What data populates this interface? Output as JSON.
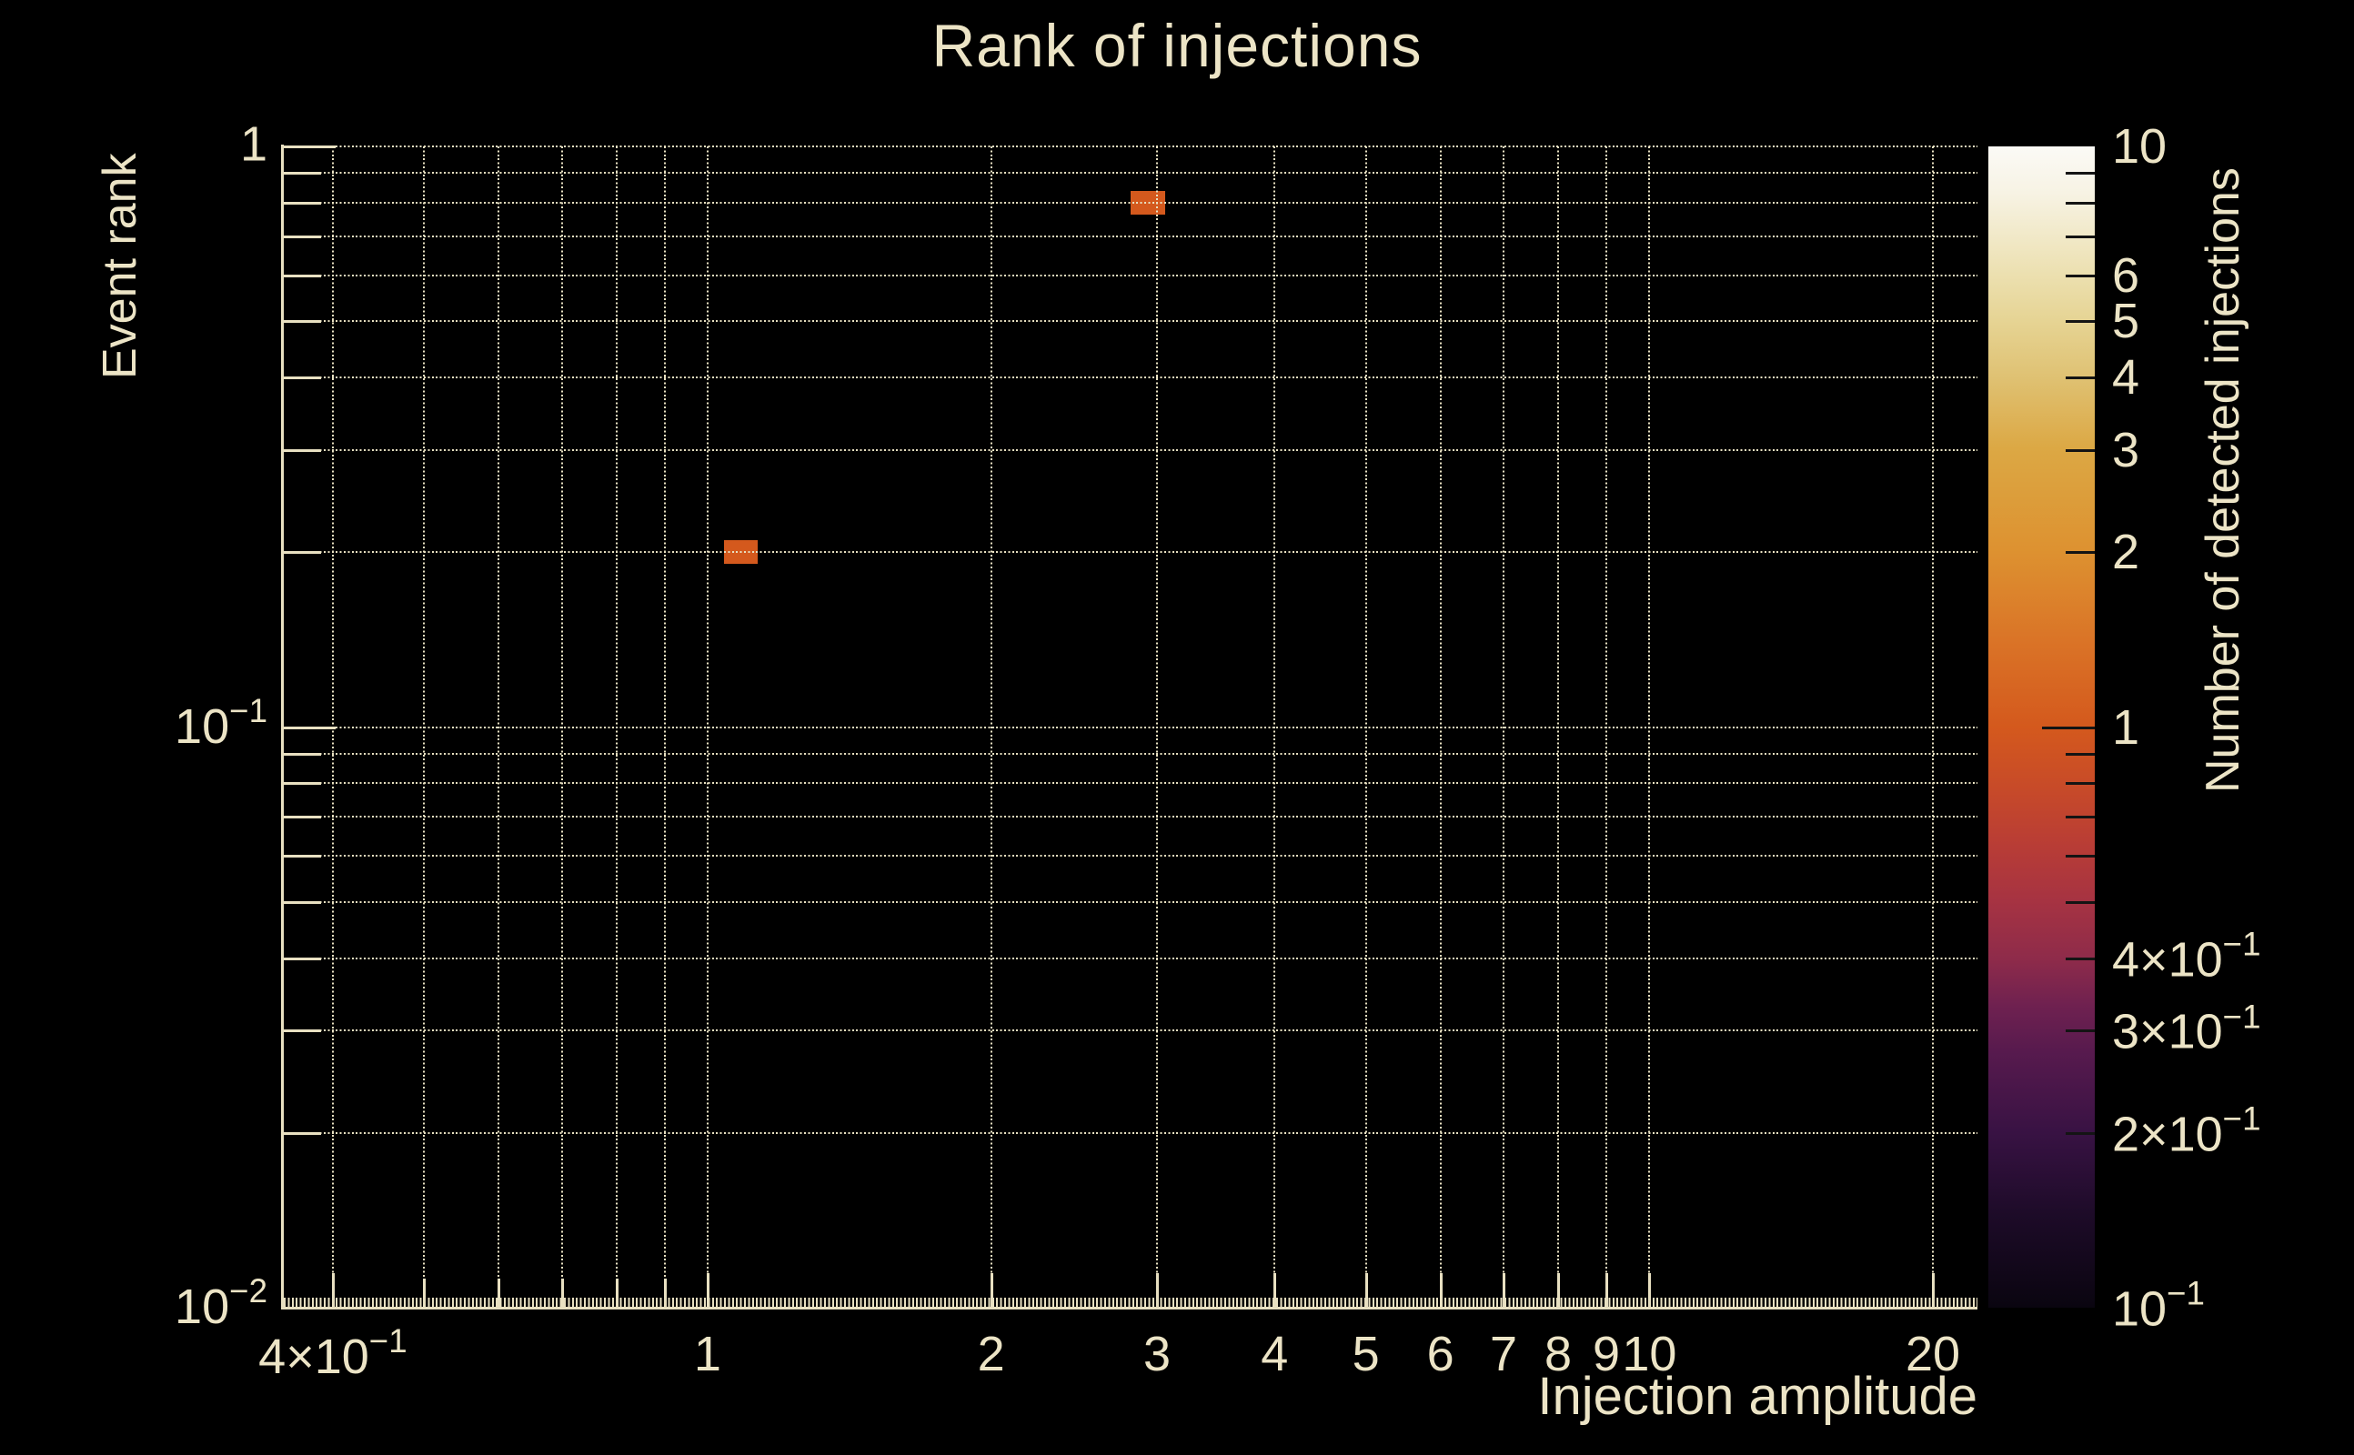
{
  "figure": {
    "background": "#000000",
    "text_color": "#ece4c6",
    "grid_color": "#e8e0c1",
    "axis_color": "#e8e0c1",
    "cell_color": "#d4591d",
    "colorbar_tick_color": "#141414"
  },
  "chart_data": {
    "type": "heatmap",
    "title": "Rank of injections",
    "xlabel": "Injection amplitude",
    "ylabel": "Event rank",
    "zlabel": "Number of detected injections",
    "xscale": "log",
    "yscale": "log",
    "zscale": "log",
    "xlim": [
      0.354,
      22.3
    ],
    "ylim": [
      0.01,
      1.0
    ],
    "zlim": [
      0.1,
      10
    ],
    "grid_style": "dotted",
    "legend_position": "colorbar-right",
    "x_ticks": [
      {
        "value": 0.4,
        "label": "4×10^{−1}"
      },
      {
        "value": 1,
        "label": "1"
      },
      {
        "value": 2,
        "label": "2"
      },
      {
        "value": 3,
        "label": "3"
      },
      {
        "value": 4,
        "label": "4"
      },
      {
        "value": 5,
        "label": "5"
      },
      {
        "value": 6,
        "label": "6"
      },
      {
        "value": 7,
        "label": "7"
      },
      {
        "value": 8,
        "label": "8"
      },
      {
        "value": 9,
        "label": "9"
      },
      {
        "value": 10,
        "label": "10"
      },
      {
        "value": 20,
        "label": "20"
      }
    ],
    "x_minor_ticks": [
      0.5,
      0.6,
      0.7,
      0.8,
      0.9
    ],
    "x_gridlines": [
      0.4,
      0.5,
      0.6,
      0.7,
      0.8,
      0.9,
      1,
      2,
      3,
      4,
      5,
      6,
      7,
      8,
      9,
      10,
      20
    ],
    "y_ticks": [
      {
        "value": 1,
        "label": "1"
      },
      {
        "value": 0.1,
        "label": "10^{−1}"
      },
      {
        "value": 0.01,
        "label": "10^{−2}"
      }
    ],
    "y_minor_ticks": [
      0.9,
      0.8,
      0.7,
      0.6,
      0.5,
      0.4,
      0.3,
      0.2,
      0.09,
      0.08,
      0.07,
      0.06,
      0.05,
      0.04,
      0.03,
      0.02
    ],
    "y_gridlines": [
      1,
      0.9,
      0.8,
      0.7,
      0.6,
      0.5,
      0.4,
      0.3,
      0.2,
      0.1,
      0.09,
      0.08,
      0.07,
      0.06,
      0.05,
      0.04,
      0.03,
      0.02
    ],
    "cells": [
      {
        "x_range": [
          1.042,
          1.131
        ],
        "y_range": [
          0.191,
          0.21
        ],
        "value": 1
      },
      {
        "x_range": [
          2.81,
          3.06
        ],
        "y_range": [
          0.762,
          0.838
        ],
        "value": 1
      }
    ],
    "colorbar": {
      "ticks": [
        {
          "value": 10,
          "label": "10",
          "major": false,
          "draw_tick": false
        },
        {
          "value": 6,
          "label": "6",
          "major": false,
          "draw_tick": true
        },
        {
          "value": 5,
          "label": "5",
          "major": false,
          "draw_tick": true
        },
        {
          "value": 4,
          "label": "4",
          "major": false,
          "draw_tick": true
        },
        {
          "value": 3,
          "label": "3",
          "major": false,
          "draw_tick": true
        },
        {
          "value": 2,
          "label": "2",
          "major": false,
          "draw_tick": true
        },
        {
          "value": 1,
          "label": "1",
          "major": true,
          "draw_tick": true
        },
        {
          "value": 0.4,
          "label": "4×10^{−1}",
          "major": false,
          "draw_tick": true
        },
        {
          "value": 0.3,
          "label": "3×10^{−1}",
          "major": false,
          "draw_tick": true
        },
        {
          "value": 0.2,
          "label": "2×10^{−1}",
          "major": false,
          "draw_tick": true
        },
        {
          "value": 0.1,
          "label": "10^{−1}",
          "major": false,
          "draw_tick": false
        }
      ],
      "minor_ticks": [
        9,
        8,
        7,
        0.9,
        0.8,
        0.7,
        0.6,
        0.5
      ],
      "colormap": [
        {
          "pos": 0.0,
          "color": "#0a0510"
        },
        {
          "pos": 0.08,
          "color": "#1d0b28"
        },
        {
          "pos": 0.15,
          "color": "#381243"
        },
        {
          "pos": 0.22,
          "color": "#571a4e"
        },
        {
          "pos": 0.26,
          "color": "#6f2150"
        },
        {
          "pos": 0.3,
          "color": "#8e2b4a"
        },
        {
          "pos": 0.35,
          "color": "#a63342"
        },
        {
          "pos": 0.4,
          "color": "#b93d35"
        },
        {
          "pos": 0.45,
          "color": "#c84b28"
        },
        {
          "pos": 0.5,
          "color": "#d4591d"
        },
        {
          "pos": 0.575,
          "color": "#da7427"
        },
        {
          "pos": 0.65,
          "color": "#dd9130"
        },
        {
          "pos": 0.74,
          "color": "#dca844"
        },
        {
          "pos": 0.8,
          "color": "#dfc172"
        },
        {
          "pos": 0.85,
          "color": "#e6d494"
        },
        {
          "pos": 0.89,
          "color": "#ece0b0"
        },
        {
          "pos": 0.96,
          "color": "#f7f3e4"
        },
        {
          "pos": 1.0,
          "color": "#fbfaf6"
        }
      ]
    }
  }
}
